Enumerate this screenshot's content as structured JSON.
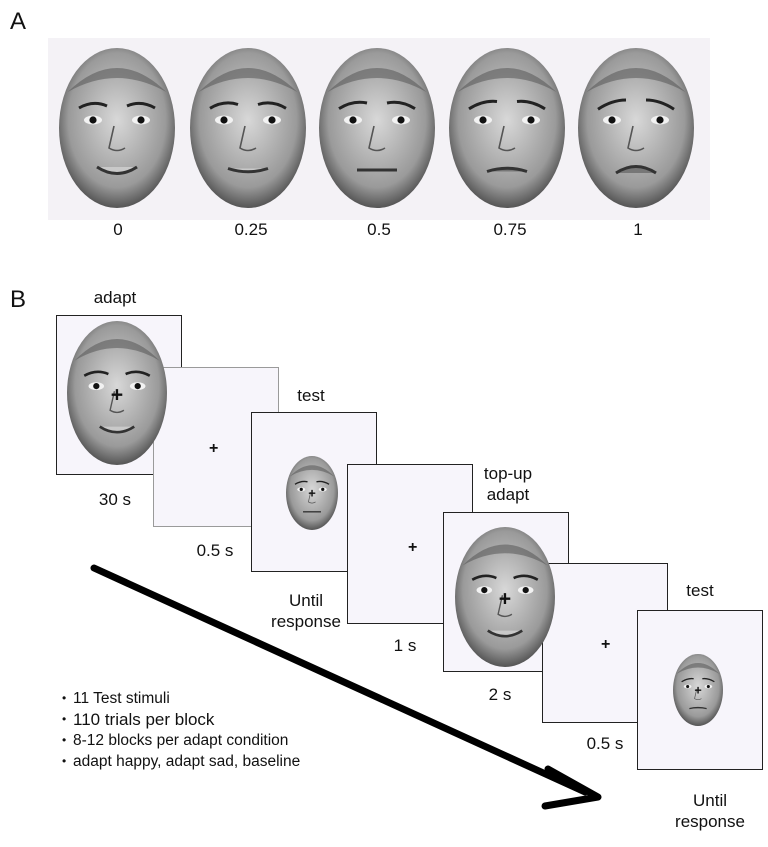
{
  "panel_a": {
    "letter": "A",
    "morph_levels": [
      "0",
      "0.25",
      "0.5",
      "0.75",
      "1"
    ]
  },
  "panel_b": {
    "letter": "B",
    "labels": {
      "adapt": "adapt",
      "adapt_duration": "30 s",
      "blank1_duration": "0.5 s",
      "test1": "test",
      "test1_duration": "Until\nresponse",
      "blank2_duration": "1 s",
      "topup": "top-up\nadapt",
      "topup_duration": "2 s",
      "blank3_duration": "0.5 s",
      "test2": "test",
      "test2_duration": "Until\nresponse"
    },
    "fixation": "+",
    "bullets": [
      "11 Test stimuli",
      "110 trials per block",
      "8-12 blocks per adapt condition",
      "adapt happy, adapt sad, baseline"
    ]
  },
  "colors": {
    "strip_bg": "#f4f2f6",
    "frame_bg": "#f7f5fb",
    "frame_border": "#222222",
    "arrow": "#000000"
  }
}
